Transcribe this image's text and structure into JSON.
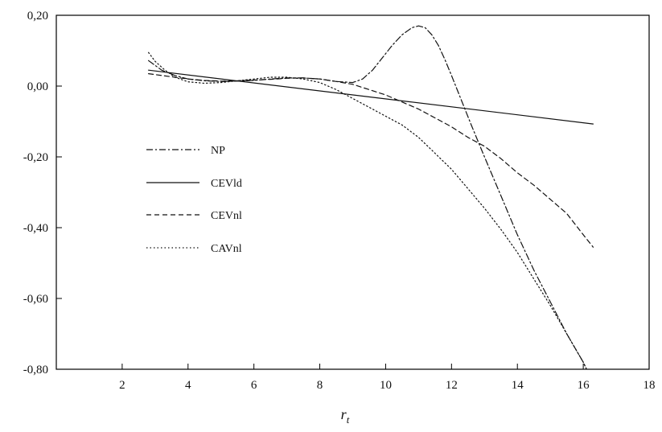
{
  "chart_data": {
    "type": "line",
    "xlabel": "r",
    "xlabel_sub": "t",
    "ylabel": "",
    "xlim": [
      0,
      18
    ],
    "ylim": [
      -0.8,
      0.2
    ],
    "xticks": [
      2,
      4,
      6,
      8,
      10,
      12,
      14,
      16,
      18
    ],
    "xtick_labels": [
      "2",
      "4",
      "6",
      "8",
      "10",
      "12",
      "14",
      "16",
      "18"
    ],
    "yticks": [
      0.2,
      0.0,
      -0.2,
      -0.4,
      -0.6,
      -0.8
    ],
    "ytick_labels": [
      "0,20",
      "0,00",
      "-0,20",
      "-0,40",
      "-0,60",
      "-0,80"
    ],
    "grid": false,
    "legend_position": "left",
    "series": [
      {
        "name": "NP",
        "dash": "dashdot",
        "x": [
          2.8,
          3.2,
          3.6,
          4.0,
          4.5,
          5.0,
          5.5,
          6.0,
          6.5,
          7.0,
          7.5,
          8.0,
          8.5,
          9.0,
          9.3,
          9.6,
          9.9,
          10.2,
          10.5,
          10.8,
          11.0,
          11.2,
          11.4,
          11.6,
          11.8,
          12.0,
          12.3,
          12.6,
          13.0,
          13.5,
          14.0,
          14.5,
          15.0,
          15.5,
          16.0,
          16.1
        ],
        "y": [
          0.072,
          0.045,
          0.03,
          0.02,
          0.015,
          0.013,
          0.014,
          0.016,
          0.02,
          0.023,
          0.023,
          0.02,
          0.013,
          0.01,
          0.02,
          0.045,
          0.08,
          0.115,
          0.145,
          0.165,
          0.17,
          0.165,
          0.145,
          0.115,
          0.075,
          0.03,
          -0.04,
          -0.11,
          -0.2,
          -0.31,
          -0.42,
          -0.52,
          -0.61,
          -0.7,
          -0.78,
          -0.8
        ]
      },
      {
        "name": "CEVld",
        "dash": "solid",
        "x": [
          2.8,
          16.3
        ],
        "y": [
          0.045,
          -0.107
        ]
      },
      {
        "name": "CEVnl",
        "dash": "dashed",
        "x": [
          2.8,
          3.2,
          3.6,
          4.0,
          4.5,
          5.0,
          5.5,
          6.0,
          6.5,
          7.0,
          7.5,
          8.0,
          8.5,
          9.0,
          9.5,
          10.0,
          10.5,
          11.0,
          11.5,
          12.0,
          12.5,
          13.0,
          13.5,
          14.0,
          14.5,
          15.0,
          15.5,
          16.0,
          16.3
        ],
        "y": [
          0.035,
          0.03,
          0.025,
          0.02,
          0.016,
          0.014,
          0.015,
          0.017,
          0.019,
          0.022,
          0.023,
          0.02,
          0.013,
          0.005,
          -0.01,
          -0.025,
          -0.045,
          -0.065,
          -0.09,
          -0.115,
          -0.145,
          -0.17,
          -0.205,
          -0.245,
          -0.28,
          -0.32,
          -0.36,
          -0.42,
          -0.455
        ]
      },
      {
        "name": "CAVnl",
        "dash": "dotted",
        "x": [
          2.8,
          3.0,
          3.3,
          3.6,
          4.0,
          4.5,
          5.0,
          5.5,
          6.0,
          6.5,
          7.0,
          7.5,
          8.0,
          8.5,
          9.0,
          9.5,
          10.0,
          10.5,
          11.0,
          11.5,
          12.0,
          12.5,
          13.0,
          13.5,
          14.0,
          14.5,
          15.0,
          15.5,
          16.0,
          16.1
        ],
        "y": [
          0.095,
          0.07,
          0.045,
          0.025,
          0.012,
          0.008,
          0.01,
          0.015,
          0.02,
          0.025,
          0.025,
          0.02,
          0.01,
          -0.01,
          -0.035,
          -0.06,
          -0.085,
          -0.11,
          -0.145,
          -0.19,
          -0.235,
          -0.29,
          -0.345,
          -0.405,
          -0.47,
          -0.545,
          -0.62,
          -0.7,
          -0.78,
          -0.8
        ]
      }
    ]
  }
}
